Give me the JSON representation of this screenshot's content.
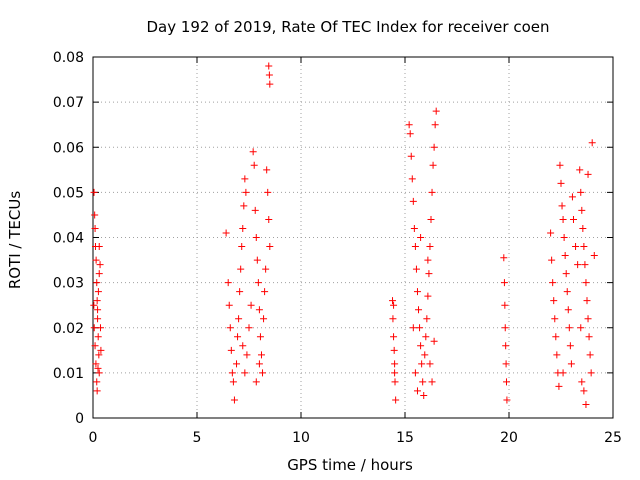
{
  "chart_data": {
    "type": "scatter",
    "title": "Day 192 of 2019, Rate Of TEC Index for receiver coen",
    "xlabel": "GPS time / hours",
    "ylabel": "ROTI / TECUs",
    "xlim": [
      0,
      25
    ],
    "ylim": [
      0,
      0.08
    ],
    "xticks": [
      0,
      5,
      10,
      15,
      20,
      25
    ],
    "xtick_labels": [
      "0",
      "5",
      "10",
      "15",
      "20",
      "25"
    ],
    "yticks": [
      0,
      0.01,
      0.02,
      0.03,
      0.04,
      0.05,
      0.06,
      0.07,
      0.08
    ],
    "ytick_labels": [
      "0",
      "0.01",
      "0.02",
      "0.03",
      "0.04",
      "0.05",
      "0.06",
      "0.07",
      "0.08"
    ],
    "grid": true,
    "marker": "+",
    "color": "#ff0000",
    "series": [
      {
        "name": "ROTI",
        "points": [
          [
            0.05,
            0.05
          ],
          [
            0.08,
            0.045
          ],
          [
            0.1,
            0.042
          ],
          [
            0.12,
            0.038
          ],
          [
            0.15,
            0.035
          ],
          [
            0.18,
            0.03
          ],
          [
            0.2,
            0.026
          ],
          [
            0.22,
            0.022
          ],
          [
            0.25,
            0.018
          ],
          [
            0.28,
            0.014
          ],
          [
            0.3,
            0.01
          ],
          [
            0.06,
            0.02
          ],
          [
            0.1,
            0.016
          ],
          [
            0.14,
            0.012
          ],
          [
            0.18,
            0.008
          ],
          [
            0.22,
            0.024
          ],
          [
            0.26,
            0.028
          ],
          [
            0.3,
            0.032
          ],
          [
            0.34,
            0.034
          ],
          [
            0.36,
            0.02
          ],
          [
            0.38,
            0.015
          ],
          [
            0.3,
            0.038
          ],
          [
            0.04,
            0.025
          ],
          [
            0.2,
            0.006
          ],
          [
            0.24,
            0.011
          ],
          [
            6.4,
            0.041
          ],
          [
            6.5,
            0.03
          ],
          [
            6.55,
            0.025
          ],
          [
            6.6,
            0.02
          ],
          [
            6.65,
            0.015
          ],
          [
            6.7,
            0.01
          ],
          [
            6.75,
            0.008
          ],
          [
            6.8,
            0.004
          ],
          [
            6.9,
            0.012
          ],
          [
            6.95,
            0.018
          ],
          [
            7.0,
            0.022
          ],
          [
            7.05,
            0.028
          ],
          [
            7.1,
            0.033
          ],
          [
            7.15,
            0.038
          ],
          [
            7.2,
            0.042
          ],
          [
            7.25,
            0.047
          ],
          [
            7.3,
            0.053
          ],
          [
            7.35,
            0.05
          ],
          [
            7.2,
            0.016
          ],
          [
            7.3,
            0.01
          ],
          [
            7.4,
            0.014
          ],
          [
            7.5,
            0.02
          ],
          [
            7.6,
            0.025
          ],
          [
            7.7,
            0.059
          ],
          [
            7.75,
            0.056
          ],
          [
            7.8,
            0.046
          ],
          [
            7.85,
            0.04
          ],
          [
            7.9,
            0.035
          ],
          [
            7.95,
            0.03
          ],
          [
            8.0,
            0.024
          ],
          [
            8.05,
            0.018
          ],
          [
            8.1,
            0.014
          ],
          [
            8.15,
            0.01
          ],
          [
            8.2,
            0.022
          ],
          [
            8.25,
            0.028
          ],
          [
            8.3,
            0.033
          ],
          [
            8.35,
            0.055
          ],
          [
            8.4,
            0.05
          ],
          [
            8.45,
            0.044
          ],
          [
            8.5,
            0.038
          ],
          [
            8.45,
            0.078
          ],
          [
            8.48,
            0.076
          ],
          [
            8.5,
            0.074
          ],
          [
            7.85,
            0.008
          ],
          [
            8.0,
            0.012
          ],
          [
            14.4,
            0.026
          ],
          [
            14.42,
            0.022
          ],
          [
            14.45,
            0.018
          ],
          [
            14.48,
            0.015
          ],
          [
            14.5,
            0.012
          ],
          [
            14.52,
            0.008
          ],
          [
            14.55,
            0.004
          ],
          [
            14.45,
            0.025
          ],
          [
            14.5,
            0.01
          ],
          [
            15.2,
            0.065
          ],
          [
            15.25,
            0.063
          ],
          [
            15.3,
            0.058
          ],
          [
            15.35,
            0.053
          ],
          [
            15.4,
            0.048
          ],
          [
            15.45,
            0.042
          ],
          [
            15.5,
            0.038
          ],
          [
            15.55,
            0.033
          ],
          [
            15.6,
            0.028
          ],
          [
            15.65,
            0.024
          ],
          [
            15.7,
            0.02
          ],
          [
            15.75,
            0.016
          ],
          [
            15.8,
            0.012
          ],
          [
            15.85,
            0.008
          ],
          [
            15.9,
            0.005
          ],
          [
            15.95,
            0.014
          ],
          [
            16.0,
            0.018
          ],
          [
            16.05,
            0.022
          ],
          [
            16.1,
            0.027
          ],
          [
            16.15,
            0.032
          ],
          [
            16.2,
            0.038
          ],
          [
            16.25,
            0.044
          ],
          [
            16.3,
            0.05
          ],
          [
            16.35,
            0.056
          ],
          [
            16.4,
            0.06
          ],
          [
            16.45,
            0.065
          ],
          [
            16.5,
            0.068
          ],
          [
            16.2,
            0.012
          ],
          [
            16.3,
            0.008
          ],
          [
            16.4,
            0.017
          ],
          [
            15.4,
            0.02
          ],
          [
            15.5,
            0.01
          ],
          [
            15.6,
            0.006
          ],
          [
            16.1,
            0.035
          ],
          [
            15.75,
            0.04
          ],
          [
            19.75,
            0.0355
          ],
          [
            19.78,
            0.03
          ],
          [
            19.8,
            0.025
          ],
          [
            19.82,
            0.02
          ],
          [
            19.84,
            0.016
          ],
          [
            19.86,
            0.012
          ],
          [
            19.88,
            0.008
          ],
          [
            19.9,
            0.004
          ],
          [
            22.0,
            0.041
          ],
          [
            22.05,
            0.035
          ],
          [
            22.1,
            0.03
          ],
          [
            22.15,
            0.026
          ],
          [
            22.2,
            0.022
          ],
          [
            22.25,
            0.018
          ],
          [
            22.3,
            0.014
          ],
          [
            22.35,
            0.01
          ],
          [
            22.4,
            0.007
          ],
          [
            22.45,
            0.056
          ],
          [
            22.5,
            0.052
          ],
          [
            22.55,
            0.047
          ],
          [
            22.6,
            0.044
          ],
          [
            22.65,
            0.04
          ],
          [
            22.7,
            0.036
          ],
          [
            22.75,
            0.032
          ],
          [
            22.8,
            0.028
          ],
          [
            22.85,
            0.024
          ],
          [
            22.9,
            0.02
          ],
          [
            22.95,
            0.016
          ],
          [
            23.0,
            0.012
          ],
          [
            23.05,
            0.049
          ],
          [
            23.1,
            0.044
          ],
          [
            23.2,
            0.038
          ],
          [
            23.3,
            0.034
          ],
          [
            23.4,
            0.055
          ],
          [
            23.45,
            0.05
          ],
          [
            23.5,
            0.046
          ],
          [
            23.55,
            0.042
          ],
          [
            23.6,
            0.038
          ],
          [
            23.65,
            0.034
          ],
          [
            23.7,
            0.03
          ],
          [
            23.75,
            0.026
          ],
          [
            23.8,
            0.022
          ],
          [
            23.85,
            0.018
          ],
          [
            23.9,
            0.014
          ],
          [
            23.95,
            0.01
          ],
          [
            24.0,
            0.061
          ],
          [
            23.6,
            0.006
          ],
          [
            23.7,
            0.003
          ],
          [
            23.5,
            0.008
          ],
          [
            23.8,
            0.054
          ],
          [
            23.45,
            0.02
          ],
          [
            22.6,
            0.01
          ],
          [
            24.1,
            0.036
          ]
        ]
      }
    ]
  }
}
